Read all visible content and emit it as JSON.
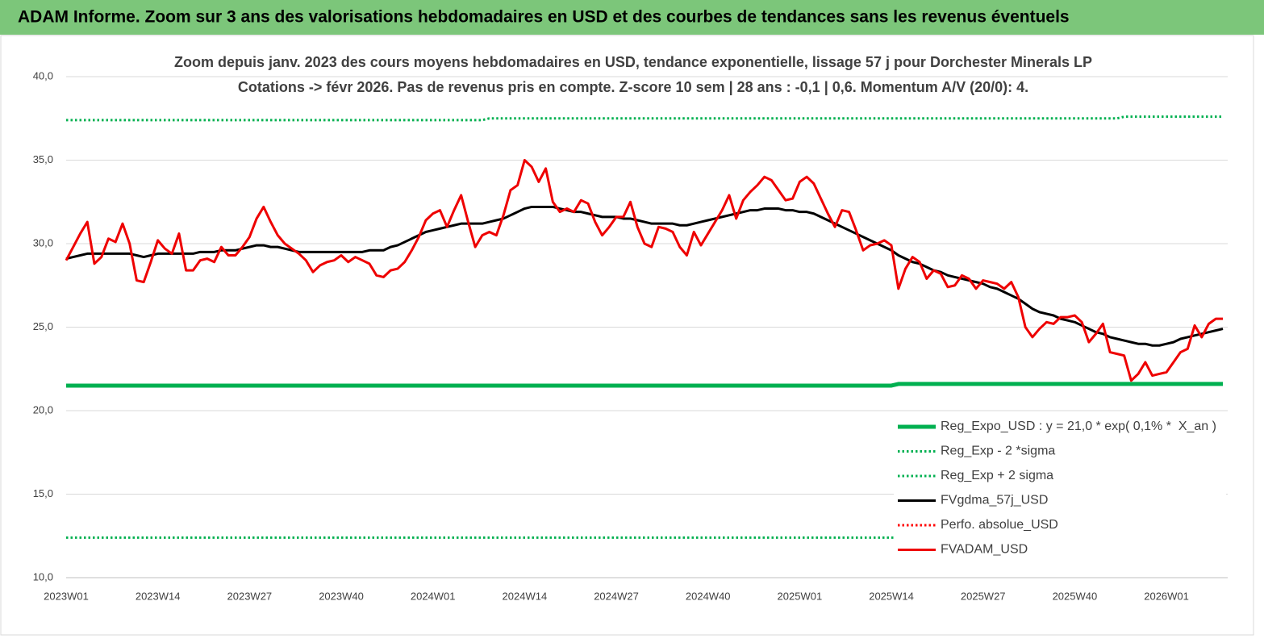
{
  "header_title": "ADAM Informe. Zoom sur 3 ans des valorisations hebdomadaires en USD et des courbes de tendances sans les revenus éventuels",
  "chart_data": {
    "type": "line",
    "title": "Zoom depuis janv. 2023 des cours moyens hebdomadaires en USD, tendance exponentielle, lissage 57 j pour Dorchester Minerals LP",
    "subtitle": "Cotations -> févr 2026. Pas de revenus pris en compte. Z-score 10 sem  | 28 ans : -0,1 | 0,6. Momentum A/V (20/0): 4.",
    "categories": [
      "2023W01",
      null,
      null,
      null,
      null,
      null,
      null,
      null,
      null,
      null,
      null,
      null,
      null,
      "2023W14",
      null,
      null,
      null,
      null,
      null,
      null,
      null,
      null,
      null,
      null,
      null,
      null,
      "2023W27",
      null,
      null,
      null,
      null,
      null,
      null,
      null,
      null,
      null,
      null,
      null,
      null,
      "2023W40",
      null,
      null,
      null,
      null,
      null,
      null,
      null,
      null,
      null,
      null,
      null,
      null,
      "2024W01",
      null,
      null,
      null,
      null,
      null,
      null,
      null,
      null,
      null,
      null,
      null,
      null,
      "2024W14",
      null,
      null,
      null,
      null,
      null,
      null,
      null,
      null,
      null,
      null,
      null,
      null,
      "2024W27",
      null,
      null,
      null,
      null,
      null,
      null,
      null,
      null,
      null,
      null,
      null,
      null,
      "2024W40",
      null,
      null,
      null,
      null,
      null,
      null,
      null,
      null,
      null,
      null,
      null,
      null,
      "2025W01",
      null,
      null,
      null,
      null,
      null,
      null,
      null,
      null,
      null,
      null,
      null,
      null,
      "2025W14",
      null,
      null,
      null,
      null,
      null,
      null,
      null,
      null,
      null,
      null,
      null,
      null,
      "2025W27",
      null,
      null,
      null,
      null,
      null,
      null,
      null,
      null,
      null,
      null,
      null,
      null,
      "2025W40",
      null,
      null,
      null,
      null,
      null,
      null,
      null,
      null,
      null,
      null,
      null,
      null,
      "2026W01",
      null,
      null,
      null,
      null,
      null,
      null,
      null,
      null
    ],
    "ylim": [
      10,
      40
    ],
    "yticks": [
      {
        "value": 10,
        "label": "10,0"
      },
      {
        "value": 15,
        "label": "15,0"
      },
      {
        "value": 20,
        "label": "20,0"
      },
      {
        "value": 25,
        "label": "25,0"
      },
      {
        "value": 30,
        "label": "30,0"
      },
      {
        "value": 35,
        "label": "35,0"
      },
      {
        "value": 40,
        "label": "40,0"
      }
    ],
    "grid": true,
    "legend": "bottom-right",
    "series": [
      {
        "name": "Reg_Expo_USD : y = 21,0 * exp( 0,1% *  X_an )",
        "color": "#00b050",
        "line_style": "solid",
        "line_width": 5,
        "values": [
          21.5,
          21.5,
          21.5,
          21.5,
          21.5,
          21.5,
          21.5,
          21.5,
          21.5,
          21.5,
          21.5,
          21.5,
          21.5,
          21.5,
          21.5,
          21.5,
          21.5,
          21.5,
          21.5,
          21.5,
          21.5,
          21.5,
          21.5,
          21.5,
          21.5,
          21.5,
          21.5,
          21.5,
          21.5,
          21.5,
          21.5,
          21.5,
          21.5,
          21.5,
          21.5,
          21.5,
          21.5,
          21.5,
          21.5,
          21.5,
          21.5,
          21.5,
          21.5,
          21.5,
          21.5,
          21.5,
          21.5,
          21.5,
          21.5,
          21.5,
          21.5,
          21.5,
          21.5,
          21.5,
          21.5,
          21.5,
          21.5,
          21.5,
          21.5,
          21.5,
          21.5,
          21.5,
          21.5,
          21.5,
          21.5,
          21.5,
          21.5,
          21.5,
          21.5,
          21.5,
          21.5,
          21.5,
          21.5,
          21.5,
          21.5,
          21.5,
          21.5,
          21.5,
          21.5,
          21.5,
          21.5,
          21.5,
          21.5,
          21.5,
          21.5,
          21.5,
          21.5,
          21.5,
          21.5,
          21.5,
          21.5,
          21.5,
          21.5,
          21.5,
          21.5,
          21.5,
          21.5,
          21.5,
          21.5,
          21.5,
          21.5,
          21.5,
          21.5,
          21.5,
          21.5,
          21.5,
          21.5,
          21.5,
          21.5,
          21.5,
          21.5,
          21.5,
          21.5,
          21.5,
          21.5,
          21.5,
          21.5,
          21.5,
          21.6,
          21.6,
          21.6,
          21.6,
          21.6,
          21.6,
          21.6,
          21.6,
          21.6,
          21.6,
          21.6,
          21.6,
          21.6,
          21.6,
          21.6,
          21.6,
          21.6,
          21.6,
          21.6,
          21.6,
          21.6,
          21.6,
          21.6,
          21.6,
          21.6,
          21.6,
          21.6,
          21.6,
          21.6,
          21.6,
          21.6,
          21.6,
          21.6,
          21.6,
          21.6,
          21.6,
          21.6,
          21.6,
          21.6,
          21.6,
          21.6,
          21.6,
          21.6,
          21.6,
          21.6,
          21.6,
          21.6
        ]
      },
      {
        "name": "Reg_Exp - 2 *sigma",
        "color": "#00b050",
        "line_style": "dotted",
        "line_width": 3,
        "values": [
          12.4,
          12.4,
          12.4,
          12.4,
          12.4,
          12.4,
          12.4,
          12.4,
          12.4,
          12.4,
          12.4,
          12.4,
          12.4,
          12.4,
          12.4,
          12.4,
          12.4,
          12.4,
          12.4,
          12.4,
          12.4,
          12.4,
          12.4,
          12.4,
          12.4,
          12.4,
          12.4,
          12.4,
          12.4,
          12.4,
          12.4,
          12.4,
          12.4,
          12.4,
          12.4,
          12.4,
          12.4,
          12.4,
          12.4,
          12.4,
          12.4,
          12.4,
          12.4,
          12.4,
          12.4,
          12.4,
          12.4,
          12.4,
          12.4,
          12.4,
          12.4,
          12.4,
          12.4,
          12.4,
          12.4,
          12.4,
          12.4,
          12.4,
          12.4,
          12.4,
          12.4,
          12.4,
          12.4,
          12.4,
          12.4,
          12.4,
          12.4,
          12.4,
          12.4,
          12.4,
          12.4,
          12.4,
          12.4,
          12.4,
          12.4,
          12.4,
          12.4,
          12.4,
          12.4,
          12.4,
          12.4,
          12.4,
          12.4,
          12.4,
          12.4,
          12.4,
          12.4,
          12.4,
          12.4,
          12.4,
          12.4,
          12.4,
          12.4,
          12.4,
          12.4,
          12.4,
          12.4,
          12.4,
          12.4,
          12.4,
          12.4,
          12.4,
          12.4,
          12.4,
          12.4,
          12.4,
          12.4,
          12.4,
          12.4,
          12.4,
          12.4,
          12.4,
          12.4,
          12.4,
          12.4,
          12.4,
          12.4,
          12.4,
          12.4,
          12.4,
          12.4,
          12.4,
          12.4,
          12.4,
          12.4,
          12.4,
          12.4,
          12.4,
          12.4,
          12.4,
          12.4,
          12.4,
          12.4,
          12.4,
          12.4,
          12.4,
          12.4,
          12.4,
          12.4,
          12.4,
          12.4,
          12.4,
          12.4,
          12.4,
          12.4,
          12.4,
          12.4,
          12.4,
          12.4,
          12.4,
          12.4,
          12.4,
          12.4,
          12.4,
          12.4,
          12.4,
          12.4,
          12.4,
          12.4,
          12.4,
          12.4,
          12.4,
          12.4,
          12.4,
          12.4
        ]
      },
      {
        "name": "Reg_Exp + 2 sigma",
        "color": "#00b050",
        "line_style": "dotted",
        "line_width": 3,
        "values": [
          37.4,
          37.4,
          37.4,
          37.4,
          37.4,
          37.4,
          37.4,
          37.4,
          37.4,
          37.4,
          37.4,
          37.4,
          37.4,
          37.4,
          37.4,
          37.4,
          37.4,
          37.4,
          37.4,
          37.4,
          37.4,
          37.4,
          37.4,
          37.4,
          37.4,
          37.4,
          37.4,
          37.4,
          37.4,
          37.4,
          37.4,
          37.4,
          37.4,
          37.4,
          37.4,
          37.4,
          37.4,
          37.4,
          37.4,
          37.4,
          37.4,
          37.4,
          37.4,
          37.4,
          37.4,
          37.4,
          37.4,
          37.4,
          37.4,
          37.4,
          37.4,
          37.4,
          37.4,
          37.4,
          37.4,
          37.4,
          37.4,
          37.4,
          37.4,
          37.4,
          37.5,
          37.5,
          37.5,
          37.5,
          37.5,
          37.5,
          37.5,
          37.5,
          37.5,
          37.5,
          37.5,
          37.5,
          37.5,
          37.5,
          37.5,
          37.5,
          37.5,
          37.5,
          37.5,
          37.5,
          37.5,
          37.5,
          37.5,
          37.5,
          37.5,
          37.5,
          37.5,
          37.5,
          37.5,
          37.5,
          37.5,
          37.5,
          37.5,
          37.5,
          37.5,
          37.5,
          37.5,
          37.5,
          37.5,
          37.5,
          37.5,
          37.5,
          37.5,
          37.5,
          37.5,
          37.5,
          37.5,
          37.5,
          37.5,
          37.5,
          37.5,
          37.5,
          37.5,
          37.5,
          37.5,
          37.5,
          37.5,
          37.5,
          37.5,
          37.5,
          37.5,
          37.5,
          37.5,
          37.5,
          37.5,
          37.5,
          37.5,
          37.5,
          37.5,
          37.5,
          37.5,
          37.5,
          37.5,
          37.5,
          37.5,
          37.5,
          37.5,
          37.5,
          37.5,
          37.5,
          37.5,
          37.5,
          37.5,
          37.5,
          37.5,
          37.5,
          37.5,
          37.5,
          37.5,
          37.5,
          37.6,
          37.6,
          37.6,
          37.6,
          37.6,
          37.6,
          37.6,
          37.6,
          37.6,
          37.6,
          37.6,
          37.6,
          37.6,
          37.6,
          37.6
        ]
      },
      {
        "name": "FVgdma_57j_USD",
        "color": "#000000",
        "line_style": "solid",
        "line_width": 3,
        "values": [
          29.1,
          29.2,
          29.3,
          29.4,
          29.4,
          29.4,
          29.4,
          29.4,
          29.4,
          29.4,
          29.3,
          29.2,
          29.3,
          29.4,
          29.4,
          29.4,
          29.4,
          29.4,
          29.4,
          29.5,
          29.5,
          29.5,
          29.6,
          29.6,
          29.6,
          29.7,
          29.8,
          29.9,
          29.9,
          29.8,
          29.8,
          29.7,
          29.6,
          29.5,
          29.5,
          29.5,
          29.5,
          29.5,
          29.5,
          29.5,
          29.5,
          29.5,
          29.5,
          29.6,
          29.6,
          29.6,
          29.8,
          29.9,
          30.1,
          30.3,
          30.5,
          30.7,
          30.8,
          30.9,
          31.0,
          31.1,
          31.2,
          31.2,
          31.2,
          31.2,
          31.3,
          31.4,
          31.5,
          31.7,
          31.9,
          32.1,
          32.2,
          32.2,
          32.2,
          32.2,
          32.1,
          32.0,
          31.9,
          31.9,
          31.8,
          31.7,
          31.6,
          31.6,
          31.6,
          31.5,
          31.5,
          31.4,
          31.3,
          31.2,
          31.2,
          31.2,
          31.2,
          31.1,
          31.1,
          31.2,
          31.3,
          31.4,
          31.5,
          31.6,
          31.7,
          31.8,
          31.9,
          32.0,
          32.0,
          32.1,
          32.1,
          32.1,
          32.0,
          32.0,
          31.9,
          31.9,
          31.8,
          31.6,
          31.4,
          31.2,
          31.0,
          30.8,
          30.6,
          30.4,
          30.2,
          30.0,
          29.8,
          29.6,
          29.3,
          29.1,
          28.9,
          28.8,
          28.6,
          28.4,
          28.3,
          28.1,
          28.0,
          27.9,
          27.8,
          27.7,
          27.6,
          27.4,
          27.3,
          27.1,
          26.9,
          26.7,
          26.4,
          26.1,
          25.9,
          25.8,
          25.7,
          25.5,
          25.4,
          25.3,
          25.1,
          24.9,
          24.7,
          24.6,
          24.4,
          24.3,
          24.2,
          24.1,
          24.0,
          24.0,
          23.9,
          23.9,
          24.0,
          24.1,
          24.3,
          24.4,
          24.5,
          24.6,
          24.7,
          24.8,
          24.9
        ]
      },
      {
        "name": "Perfo. absolue_USD",
        "color": "#ff0000",
        "line_style": "dotted",
        "line_width": 3,
        "values": [
          null,
          null,
          null,
          null,
          null,
          null,
          null,
          null,
          null,
          null,
          null,
          null,
          null,
          null,
          null,
          null,
          null,
          null,
          null,
          null,
          null,
          null,
          null,
          null,
          null,
          null,
          null,
          null,
          null,
          null,
          null,
          null,
          null,
          null,
          null,
          null,
          null,
          null,
          null,
          null,
          null,
          null,
          null,
          null,
          null,
          null,
          null,
          null,
          null,
          null,
          null,
          null,
          null,
          null,
          null,
          null,
          null,
          null,
          null,
          null,
          null,
          null,
          null,
          null,
          null,
          null,
          null,
          null,
          null,
          null,
          null,
          null,
          null,
          null,
          null,
          null,
          null,
          null,
          null,
          null,
          null,
          null,
          null,
          null,
          null,
          null,
          null,
          null,
          null,
          null,
          null,
          null,
          null,
          null,
          null,
          null,
          null,
          null,
          null,
          null,
          null,
          null,
          null,
          null,
          null,
          null,
          null,
          null,
          null,
          null,
          null,
          null,
          null,
          null,
          null,
          null,
          null,
          null,
          null,
          null,
          null,
          null,
          null,
          null,
          null,
          null,
          null,
          null,
          null,
          null,
          null,
          null,
          null,
          null,
          null,
          null,
          null,
          null,
          null,
          null,
          null,
          null,
          null,
          null,
          null,
          null,
          null,
          null,
          null,
          null,
          null,
          null,
          null,
          null,
          null,
          null,
          null,
          null,
          null,
          null,
          null,
          null,
          null,
          null,
          null
        ]
      },
      {
        "name": "FVADAM_USD",
        "color": "#ee0000",
        "line_style": "solid",
        "line_width": 3,
        "values": [
          29.0,
          29.8,
          30.6,
          31.3,
          28.8,
          29.2,
          30.3,
          30.1,
          31.2,
          30.0,
          27.8,
          27.7,
          28.9,
          30.2,
          29.7,
          29.4,
          30.6,
          28.4,
          28.4,
          29.0,
          29.1,
          28.9,
          29.8,
          29.3,
          29.3,
          29.8,
          30.4,
          31.5,
          32.2,
          31.3,
          30.5,
          30.0,
          29.7,
          29.4,
          29.0,
          28.3,
          28.7,
          28.9,
          29.0,
          29.3,
          28.9,
          29.2,
          29.0,
          28.8,
          28.1,
          28.0,
          28.4,
          28.5,
          28.9,
          29.6,
          30.4,
          31.4,
          31.8,
          32.0,
          31.0,
          32.0,
          32.9,
          31.3,
          29.8,
          30.5,
          30.7,
          30.5,
          31.7,
          33.2,
          33.5,
          35.0,
          34.6,
          33.7,
          34.5,
          32.5,
          31.9,
          32.1,
          31.9,
          32.6,
          32.4,
          31.3,
          30.5,
          31.0,
          31.6,
          31.6,
          32.5,
          31.0,
          30.0,
          29.8,
          31.0,
          30.9,
          30.7,
          29.8,
          29.3,
          30.7,
          29.9,
          30.6,
          31.3,
          32.0,
          32.9,
          31.5,
          32.6,
          33.1,
          33.5,
          34.0,
          33.8,
          33.2,
          32.6,
          32.7,
          33.7,
          34.0,
          33.6,
          32.7,
          31.8,
          31.0,
          32.0,
          31.9,
          30.8,
          29.6,
          29.9,
          30.0,
          30.2,
          29.9,
          27.3,
          28.5,
          29.2,
          28.9,
          27.9,
          28.4,
          28.2,
          27.4,
          27.5,
          28.1,
          27.9,
          27.3,
          27.8,
          27.7,
          27.6,
          27.3,
          27.7,
          26.8,
          25.0,
          24.4,
          24.9,
          25.3,
          25.2,
          25.6,
          25.6,
          25.7,
          25.3,
          24.1,
          24.6,
          25.2,
          23.5,
          23.4,
          23.3,
          21.8,
          22.2,
          22.9,
          22.1,
          22.2,
          22.3,
          22.9,
          23.5,
          23.7,
          25.1,
          24.4,
          25.2,
          25.5,
          25.5
        ]
      }
    ]
  }
}
